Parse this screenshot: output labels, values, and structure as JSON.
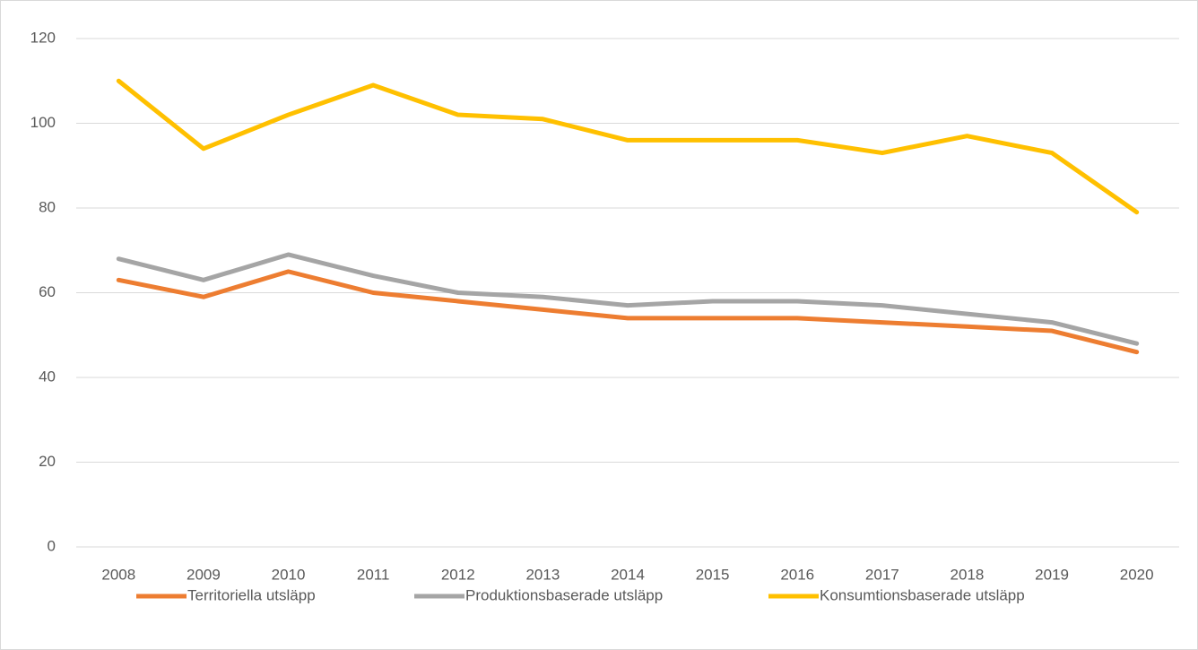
{
  "chart_data": {
    "type": "line",
    "categories": [
      "2008",
      "2009",
      "2010",
      "2011",
      "2012",
      "2013",
      "2014",
      "2015",
      "2016",
      "2017",
      "2018",
      "2019",
      "2020"
    ],
    "series": [
      {
        "name": "Territoriella utsläpp",
        "color": "#ED7D31",
        "values": [
          63,
          59,
          65,
          60,
          58,
          56,
          54,
          54,
          54,
          53,
          52,
          51,
          46
        ]
      },
      {
        "name": "Produktionsbaserade utsläpp",
        "color": "#A5A5A5",
        "values": [
          68,
          63,
          69,
          64,
          60,
          59,
          57,
          58,
          58,
          57,
          55,
          53,
          48
        ]
      },
      {
        "name": "Konsumtionsbaserade utsläpp",
        "color": "#FFC000",
        "values": [
          110,
          94,
          102,
          109,
          102,
          101,
          96,
          96,
          96,
          93,
          97,
          93,
          79
        ]
      }
    ],
    "ylim": [
      0,
      120
    ],
    "yticks": [
      0,
      20,
      40,
      60,
      80,
      100,
      120
    ],
    "grid": true,
    "legend": "bottom"
  }
}
